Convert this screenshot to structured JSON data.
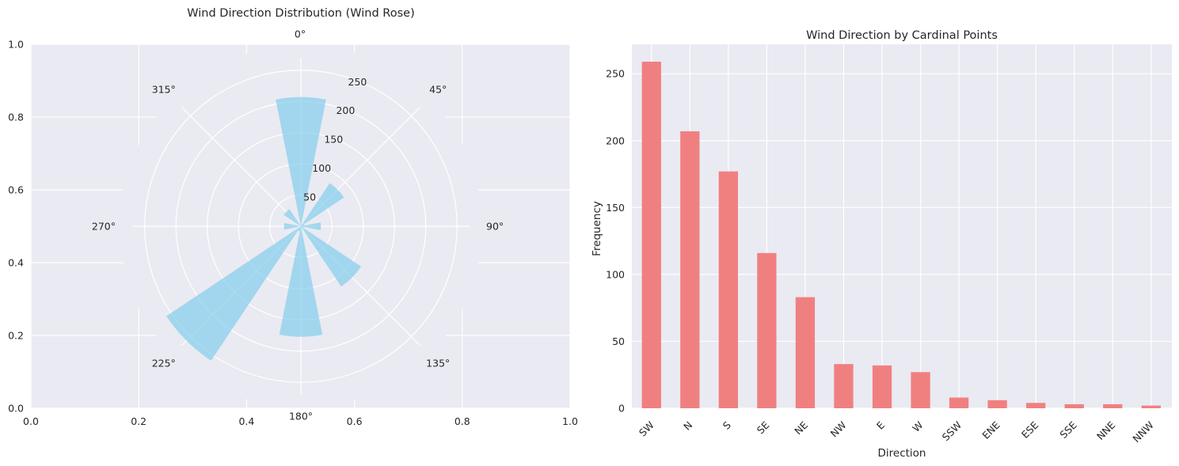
{
  "chart_data": [
    {
      "type": "polar-bar",
      "title": "Wind Direction Distribution (Wind Rose)",
      "angle_tick_labels": [
        "0°",
        "45°",
        "90°",
        "135°",
        "180°",
        "225°",
        "270°",
        "315°"
      ],
      "radial_tick_labels": [
        "50",
        "100",
        "150",
        "200",
        "250"
      ],
      "radial_ticks": [
        50,
        100,
        150,
        200,
        250
      ],
      "rmax": 270,
      "background_x_tick_labels": [
        "0.0",
        "0.2",
        "0.4",
        "0.6",
        "0.8",
        "1.0"
      ],
      "background_y_tick_labels": [
        "0.0",
        "0.2",
        "0.4",
        "0.6",
        "0.8",
        "1.0"
      ],
      "bar_width_deg": 22.5,
      "bars": [
        {
          "angle_deg": 0,
          "value": 207
        },
        {
          "angle_deg": 45,
          "value": 83
        },
        {
          "angle_deg": 90,
          "value": 32
        },
        {
          "angle_deg": 135,
          "value": 116
        },
        {
          "angle_deg": 180,
          "value": 177
        },
        {
          "angle_deg": 225,
          "value": 259
        },
        {
          "angle_deg": 270,
          "value": 27
        },
        {
          "angle_deg": 315,
          "value": 33
        },
        {
          "angle_deg": 202.5,
          "value": 8
        },
        {
          "angle_deg": 67.5,
          "value": 6
        },
        {
          "angle_deg": 112.5,
          "value": 4
        },
        {
          "angle_deg": 157.5,
          "value": 3
        },
        {
          "angle_deg": 22.5,
          "value": 3
        },
        {
          "angle_deg": 337.5,
          "value": 2
        }
      ],
      "color": "#87CEEB",
      "grid": true
    },
    {
      "type": "bar",
      "title": "Wind Direction by Cardinal Points",
      "xlabel": "Direction",
      "ylabel": "Frequency",
      "categories": [
        "SW",
        "N",
        "S",
        "SE",
        "NE",
        "NW",
        "E",
        "W",
        "SSW",
        "ENE",
        "ESE",
        "SSE",
        "NNE",
        "NNW"
      ],
      "values": [
        259,
        207,
        177,
        116,
        83,
        33,
        32,
        27,
        8,
        6,
        4,
        3,
        3,
        2
      ],
      "ylim": [
        0,
        272
      ],
      "yticks": [
        0,
        50,
        100,
        150,
        200,
        250
      ],
      "color": "#F08080",
      "grid": true
    }
  ]
}
